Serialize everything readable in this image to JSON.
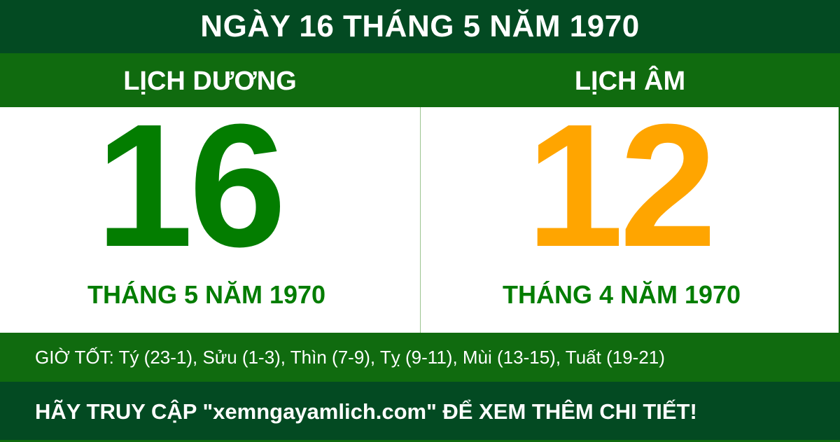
{
  "header": {
    "title": "NGÀY 16 THÁNG 5 NĂM 1970"
  },
  "solar": {
    "heading": "LỊCH DƯƠNG",
    "day": "16",
    "month_year": "THÁNG 5 NĂM 1970"
  },
  "lunar": {
    "heading": "LỊCH ÂM",
    "day": "12",
    "month_year": "THÁNG 4 NĂM 1970"
  },
  "good_hours": "GIỜ TỐT: Tý (23-1), Sửu (1-3), Thìn (7-9), Tỵ (9-11), Mùi (13-15), Tuất (19-21)",
  "footer": "HÃY TRUY CẬP \"xemngayamlich.com\" ĐỂ XEM THÊM CHI TIẾT!",
  "colors": {
    "dark_green": "#034a22",
    "band_green": "#106b0f",
    "solar_day": "#037d00",
    "lunar_day": "#ffa500"
  }
}
